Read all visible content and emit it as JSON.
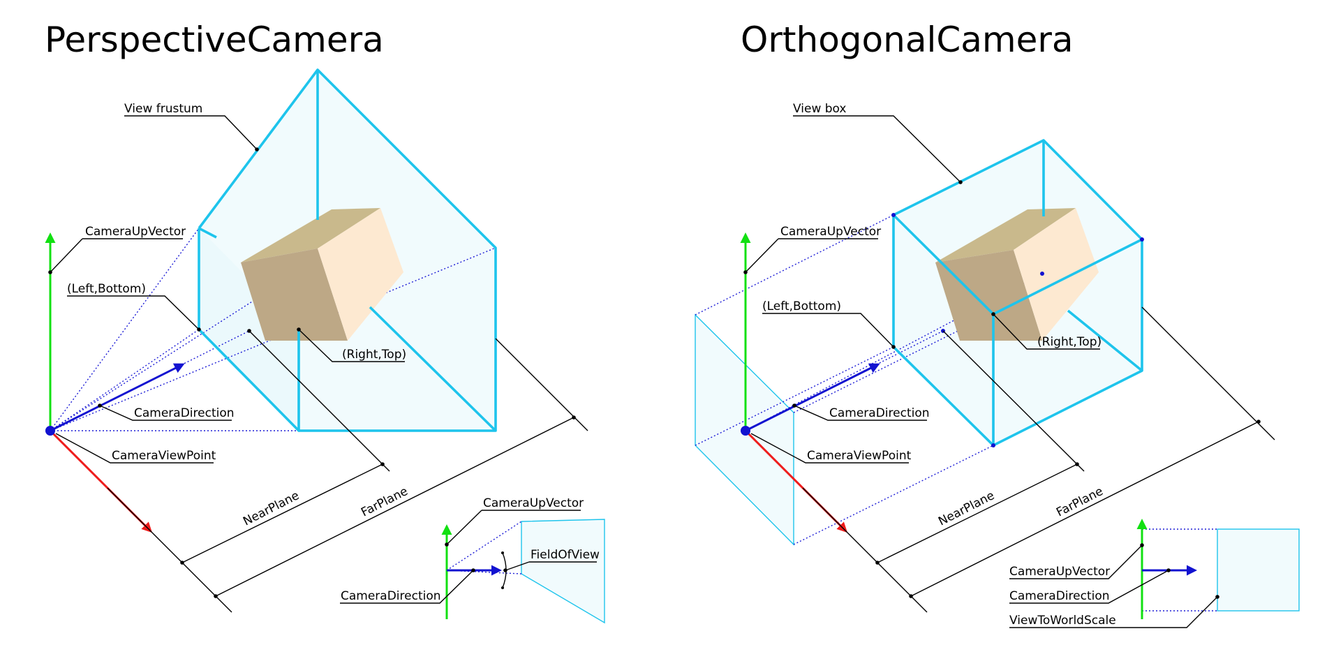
{
  "colors": {
    "frustum": "#1ec4ec",
    "up_vector": "#12e012",
    "direction": "#1212d0",
    "side_vector": "#ee1c1c",
    "cube_top": "#c9b98c",
    "cube_left": "#bda886",
    "cube_right": "#fde9d1",
    "guide": "#1d1dd6"
  },
  "perspective": {
    "title": "PerspectiveCamera",
    "view_frustum": "View frustum",
    "camera_up_vector": "CameraUpVector",
    "left_bottom": "(Left,Bottom)",
    "right_top": "(Right,Top)",
    "camera_direction": "CameraDirection",
    "camera_view_point": "CameraViewPoint",
    "near_plane": "NearPlane",
    "far_plane": "FarPlane",
    "inset": {
      "camera_up_vector": "CameraUpVector",
      "field_of_view": "FieldOfView",
      "camera_direction": "CameraDirection"
    }
  },
  "orthogonal": {
    "title": "OrthogonalCamera",
    "view_box": "View box",
    "camera_up_vector": "CameraUpVector",
    "left_bottom": "(Left,Bottom)",
    "right_top": "(Right,Top)",
    "camera_direction": "CameraDirection",
    "camera_view_point": "CameraViewPoint",
    "near_plane": "NearPlane",
    "far_plane": "FarPlane",
    "inset": {
      "camera_up_vector": "CameraUpVector",
      "camera_direction": "CameraDirection",
      "view_to_world_scale": "ViewToWorldScale"
    }
  }
}
